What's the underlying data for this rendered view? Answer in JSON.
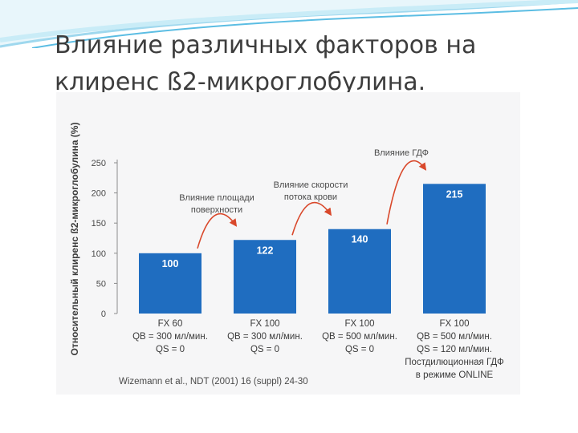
{
  "slide": {
    "title": "Влияние различных факторов на клиренс ß2-микроглобулина."
  },
  "colors": {
    "bar": "#1f6dc0",
    "bar_label": "#ffffff",
    "arrow": "#d9482b",
    "deco_blue": "#5bbde3"
  },
  "chart_data": {
    "type": "bar",
    "title": "",
    "ylabel": "Относительный клиренс ß2-микроглобулина (%)",
    "xlabel": "",
    "ylim": [
      0,
      250
    ],
    "yticks": [
      "0",
      "50",
      "100",
      "150",
      "200",
      "250"
    ],
    "grid": false,
    "categories": [
      {
        "lines": [
          "FX 60",
          "QB = 300 мл/мин.",
          "QS = 0"
        ]
      },
      {
        "lines": [
          "FX 100",
          "QB = 300 мл/мин.",
          "QS = 0"
        ]
      },
      {
        "lines": [
          "FX 100",
          "QB = 500 мл/мин.",
          "QS = 0"
        ]
      },
      {
        "lines": [
          "FX 100",
          "QB = 500 мл/мин.",
          "QS = 120 мл/мин.",
          "Постдилюционная ГДФ",
          "в режиме ONLINE"
        ]
      }
    ],
    "values": [
      100,
      122,
      140,
      215
    ],
    "data_labels": [
      "100",
      "122",
      "140",
      "215"
    ],
    "annotations": [
      {
        "lines": [
          "Влияние площади",
          "поверхности"
        ],
        "between": [
          0,
          1
        ]
      },
      {
        "lines": [
          "Влияние скорости",
          "потока крови"
        ],
        "between": [
          1,
          2
        ]
      },
      {
        "lines": [
          "Влияние ГДФ"
        ],
        "between": [
          2,
          3
        ]
      }
    ],
    "source": "Wizemann et al., NDT (2001) 16 (suppl) 24-30"
  }
}
